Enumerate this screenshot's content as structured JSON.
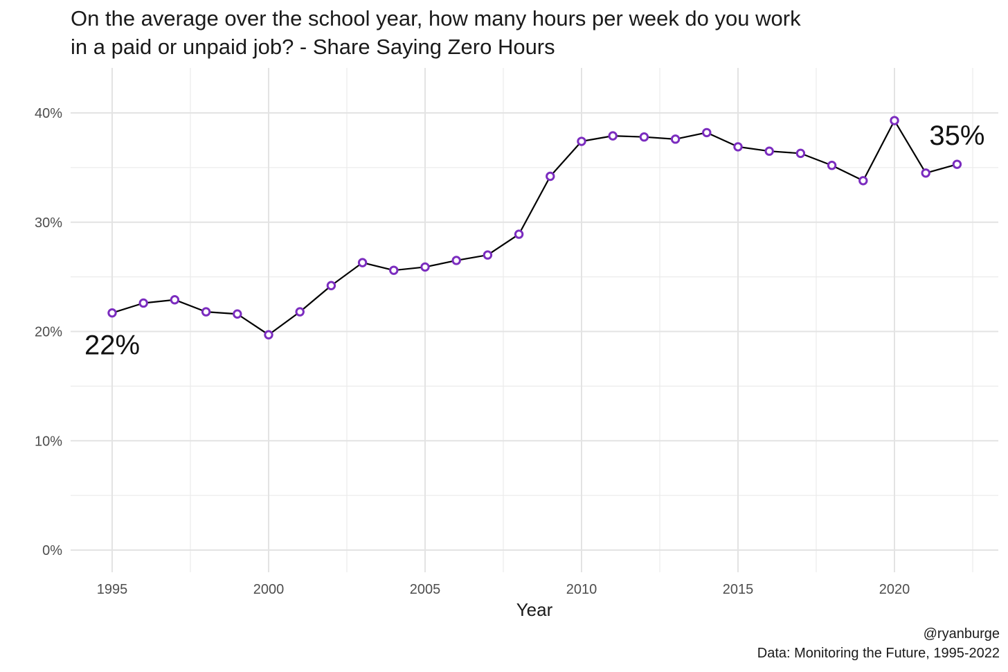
{
  "chart_data": {
    "type": "line",
    "title_lines": [
      "On the average over the school year, how many hours per week do you work",
      "in a paid or unpaid job? - Share Saying Zero Hours"
    ],
    "xlabel": "Year",
    "ylabel": "",
    "x_ticks": [
      "1995",
      "2000",
      "2005",
      "2010",
      "2015",
      "2020"
    ],
    "y_ticks": [
      "0%",
      "10%",
      "20%",
      "30%",
      "40%"
    ],
    "xlim": [
      1993.6,
      1995.0,
      2023.0
    ],
    "ylim": [
      0,
      0.4
    ],
    "grid": true,
    "x": [
      1995,
      1996,
      1997,
      1998,
      1999,
      2000,
      2001,
      2002,
      2003,
      2004,
      2005,
      2006,
      2007,
      2008,
      2009,
      2010,
      2011,
      2012,
      2013,
      2014,
      2015,
      2016,
      2017,
      2018,
      2019,
      2020,
      2021,
      2022
    ],
    "values": [
      0.217,
      0.226,
      0.229,
      0.218,
      0.216,
      0.197,
      0.218,
      0.242,
      0.263,
      0.256,
      0.259,
      0.265,
      0.27,
      0.289,
      0.342,
      0.374,
      0.379,
      0.378,
      0.376,
      0.382,
      0.369,
      0.365,
      0.363,
      0.352,
      0.338,
      0.393,
      0.345,
      0.353
    ],
    "annotations": [
      {
        "text": "22%",
        "x": 1995,
        "y": 0.217,
        "position": "below"
      },
      {
        "text": "35%",
        "x": 2022,
        "y": 0.353,
        "position": "above"
      }
    ],
    "line_color": "#000000",
    "marker_stroke": "#7b2cbf",
    "marker_fill": "#ffffff"
  },
  "caption": {
    "handle": "@ryanburge",
    "source": "Data: Monitoring the Future, 1995-2022"
  }
}
